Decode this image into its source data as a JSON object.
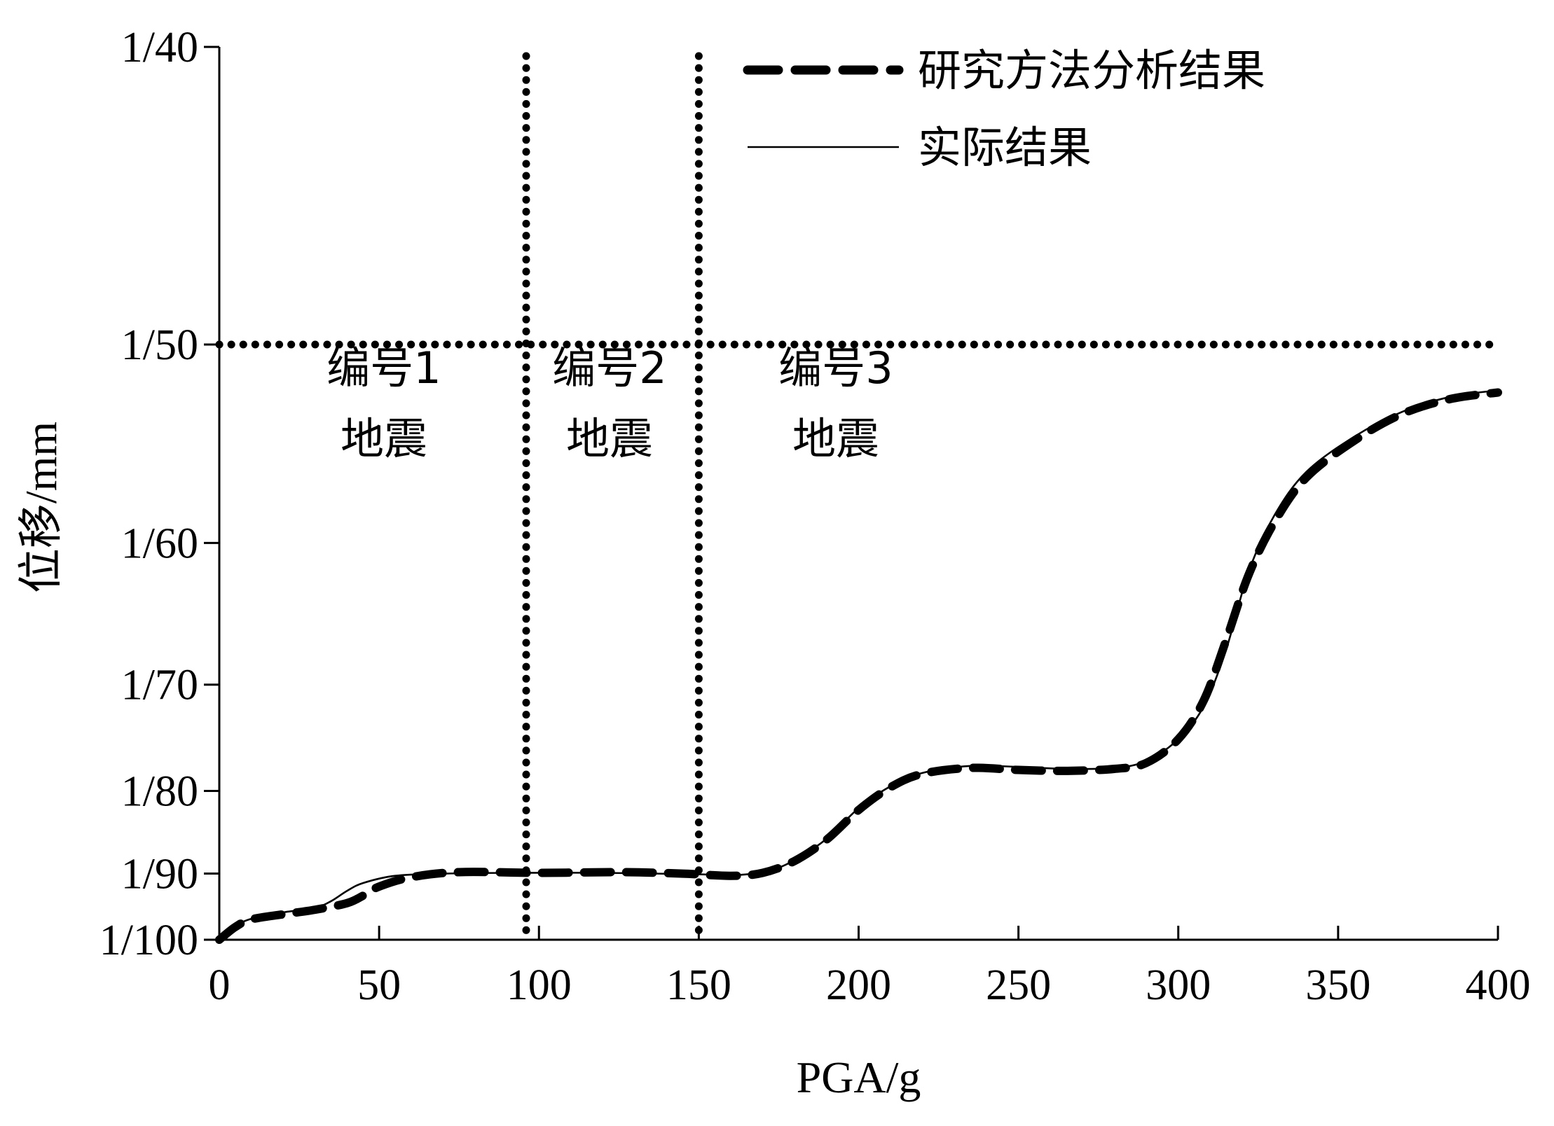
{
  "chart_data": {
    "type": "line",
    "xlabel": "PGA/g",
    "ylabel": "位移/mm",
    "xlim": [
      0,
      400
    ],
    "x_ticks": [
      0,
      50,
      100,
      150,
      200,
      250,
      300,
      350,
      400
    ],
    "y_scale": "reciprocal",
    "y_denominators_range": [
      100,
      40
    ],
    "y_tick_denominators": [
      100,
      90,
      80,
      70,
      60,
      50,
      40
    ],
    "y_tick_labels": [
      "1/100",
      "1/90",
      "1/80",
      "1/70",
      "1/60",
      "1/50",
      "1/40"
    ],
    "legend_position": "top-right",
    "legend": [
      {
        "label": "研究方法分析结果",
        "style": "thick-dashed"
      },
      {
        "label": "实际结果",
        "style": "thin-solid"
      }
    ],
    "reference_lines": {
      "horizontal": {
        "y_denominator": 50,
        "style": "dotted"
      },
      "vertical": [
        {
          "x": 96,
          "style": "dotted"
        },
        {
          "x": 150,
          "style": "dotted"
        }
      ]
    },
    "regions": [
      {
        "line1": "编号1",
        "line2": "地震"
      },
      {
        "line1": "编号2",
        "line2": "地震"
      },
      {
        "line1": "编号3",
        "line2": "地震"
      }
    ],
    "series": [
      {
        "name": "研究方法分析结果",
        "style": "thick-dashed",
        "color": "#000000",
        "points": [
          [
            0,
            100
          ],
          [
            5,
            97.9
          ],
          [
            10,
            96.7
          ],
          [
            20,
            95.9
          ],
          [
            30,
            95.2
          ],
          [
            40,
            94.2
          ],
          [
            45,
            93.1
          ],
          [
            50,
            91.8
          ],
          [
            60,
            90.5
          ],
          [
            75,
            89.8
          ],
          [
            100,
            89.9
          ],
          [
            125,
            89.8
          ],
          [
            145,
            90.0
          ],
          [
            160,
            90.3
          ],
          [
            170,
            89.9
          ],
          [
            180,
            88.3
          ],
          [
            190,
            85.6
          ],
          [
            200,
            82.1
          ],
          [
            210,
            79.6
          ],
          [
            220,
            78.2
          ],
          [
            235,
            77.6
          ],
          [
            250,
            77.8
          ],
          [
            265,
            77.9
          ],
          [
            280,
            77.7
          ],
          [
            290,
            77.1
          ],
          [
            300,
            74.8
          ],
          [
            308,
            71.3
          ],
          [
            315,
            66.5
          ],
          [
            322,
            62.0
          ],
          [
            330,
            58.8
          ],
          [
            340,
            56.3
          ],
          [
            355,
            54.4
          ],
          [
            370,
            53.1
          ],
          [
            385,
            52.4
          ],
          [
            400,
            52.1
          ]
        ]
      },
      {
        "name": "实际结果",
        "style": "thin-solid",
        "color": "#000000",
        "points": [
          [
            0,
            100
          ],
          [
            5,
            97.8
          ],
          [
            10,
            96.6
          ],
          [
            20,
            95.6
          ],
          [
            30,
            94.9
          ],
          [
            35,
            93.9
          ],
          [
            40,
            92.4
          ],
          [
            45,
            91.3
          ],
          [
            55,
            90.3
          ],
          [
            70,
            90.0
          ],
          [
            90,
            89.9
          ],
          [
            120,
            89.9
          ],
          [
            150,
            90.1
          ],
          [
            162,
            90.2
          ],
          [
            172,
            89.6
          ],
          [
            180,
            88.2
          ],
          [
            190,
            85.5
          ],
          [
            200,
            81.9
          ],
          [
            210,
            79.5
          ],
          [
            220,
            78.1
          ],
          [
            235,
            77.4
          ],
          [
            250,
            77.5
          ],
          [
            265,
            77.7
          ],
          [
            280,
            77.6
          ],
          [
            290,
            76.9
          ],
          [
            300,
            74.8
          ],
          [
            308,
            71.8
          ],
          [
            315,
            67.2
          ],
          [
            322,
            61.8
          ],
          [
            330,
            58.4
          ],
          [
            340,
            56.0
          ],
          [
            355,
            54.2
          ],
          [
            370,
            53.0
          ],
          [
            385,
            52.3
          ],
          [
            400,
            52.0
          ]
        ]
      }
    ]
  }
}
